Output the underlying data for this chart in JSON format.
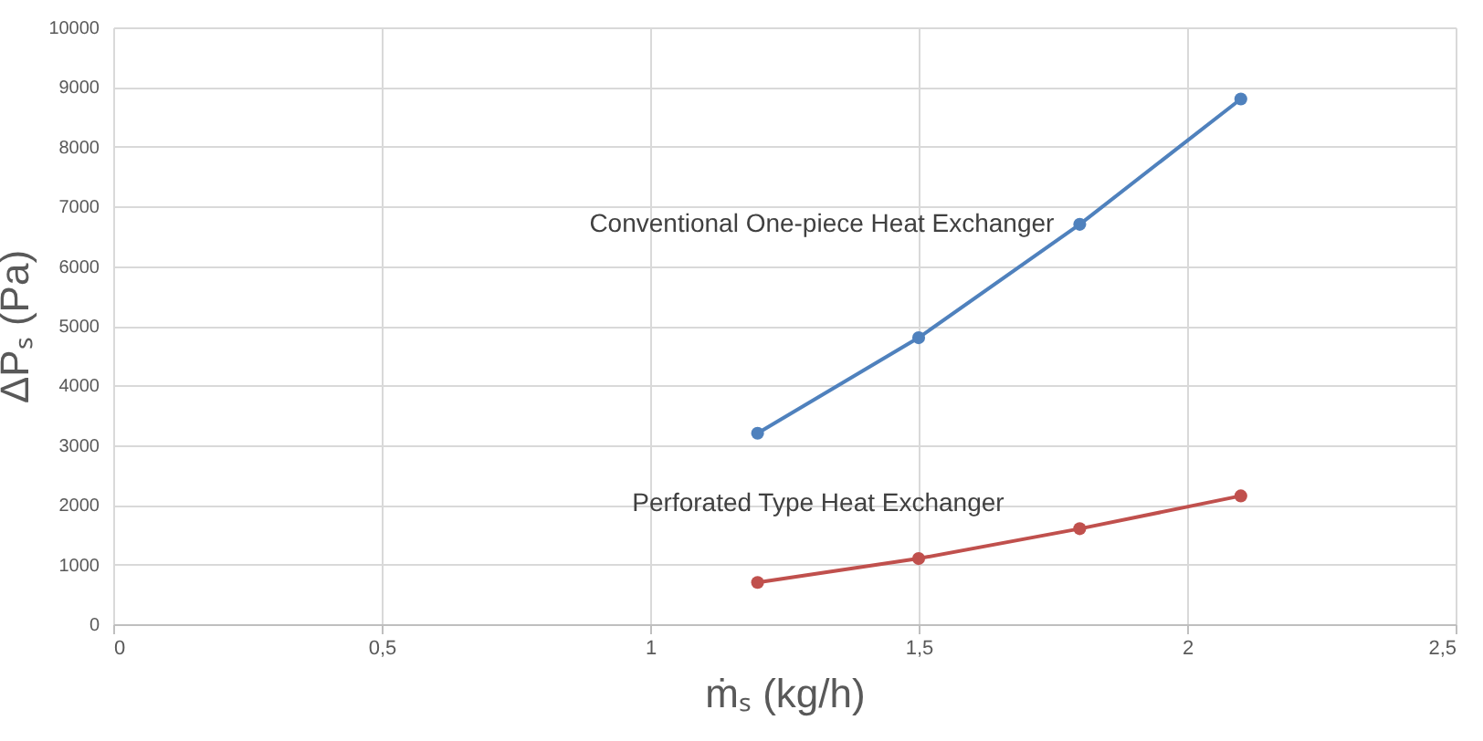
{
  "chart_data": {
    "type": "line",
    "xlabel": "ṁₛ (kg/h)",
    "ylabel": "ΔPₛ (Pa)",
    "x": [
      1.2,
      1.5,
      1.8,
      2.1
    ],
    "series": [
      {
        "name": "Conventional One-piece Heat Exchanger",
        "color": "#4f81bd",
        "values": [
          3200,
          4800,
          6700,
          8800
        ]
      },
      {
        "name": "Perforated Type Heat Exchanger",
        "color": "#c0504d",
        "values": [
          700,
          1100,
          1600,
          2150
        ]
      }
    ],
    "xlim": [
      0,
      2.5
    ],
    "xticks": [
      0,
      {
        "value": 0.5,
        "label": "0,5"
      },
      1,
      {
        "value": 1.5,
        "label": "1,5"
      },
      2,
      {
        "value": 2.5,
        "label": "2,5"
      }
    ],
    "ylim": [
      0,
      10000
    ],
    "yticks": [
      0,
      1000,
      2000,
      3000,
      4000,
      5000,
      6000,
      7000,
      8000,
      9000,
      10000
    ],
    "grid": true,
    "marker": "circle",
    "line_style": "solid"
  }
}
